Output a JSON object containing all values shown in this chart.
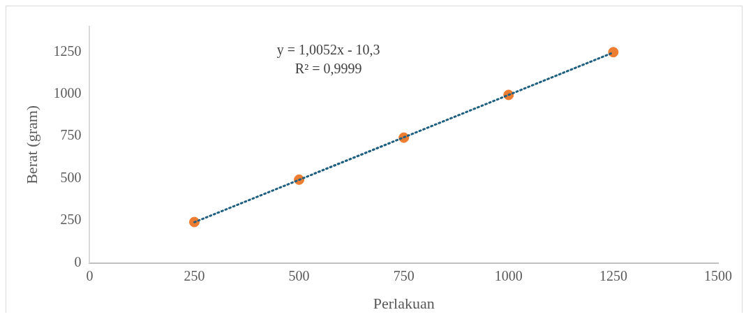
{
  "chart_data": {
    "type": "scatter",
    "xlabel": "Perlakuan",
    "ylabel": "Berat (gram)",
    "annotations": [
      "y = 1,0052x - 10,3",
      "R² = 0,9999"
    ],
    "x": [
      250,
      500,
      750,
      1000,
      1250
    ],
    "series": [
      {
        "color": "#ed7d31",
        "values": [
          242,
          493,
          742,
          995,
          1248
        ],
        "marker": "circle"
      },
      {
        "type": "line",
        "color": "#1f5f80",
        "x": [
          250,
          1250
        ],
        "values": [
          241,
          1246
        ],
        "line_style": "dotted",
        "marker": "none"
      }
    ],
    "xlim": [
      0,
      1500
    ],
    "xticks": [
      0,
      250,
      500,
      750,
      1000,
      1250,
      1500
    ],
    "ylim": [
      0,
      1400
    ],
    "yticks": [
      0,
      250,
      500,
      750,
      1000,
      1250
    ]
  }
}
